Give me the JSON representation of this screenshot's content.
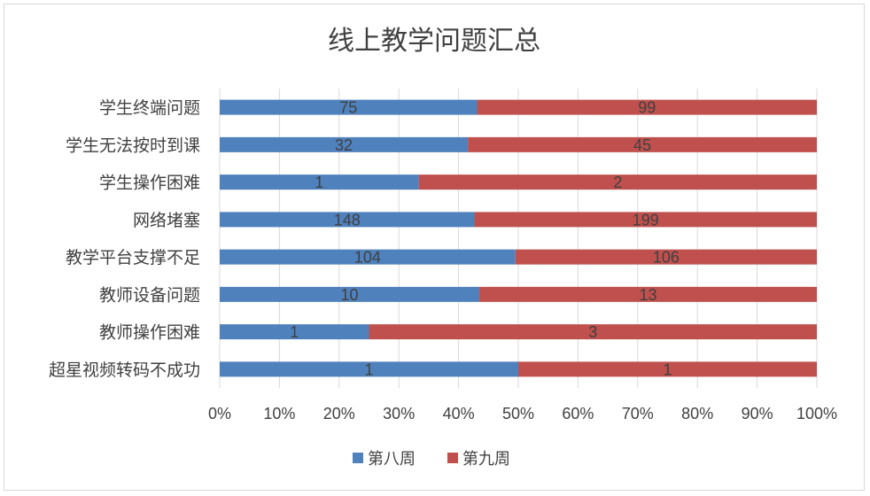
{
  "chart_data": {
    "type": "bar",
    "orientation": "horizontal",
    "stacking": "percent",
    "title": "线上教学问题汇总",
    "categories": [
      "学生终端问题",
      "学生无法按时到课",
      "学生操作困难",
      "网络堵塞",
      "教学平台支撑不足",
      "教师设备问题",
      "教师操作困难",
      "超星视频转码不成功"
    ],
    "series": [
      {
        "name": "第八周",
        "color": "#4f81bd",
        "values": [
          75,
          32,
          1,
          148,
          104,
          10,
          1,
          1
        ]
      },
      {
        "name": "第九周",
        "color": "#c0504d",
        "values": [
          99,
          45,
          2,
          199,
          106,
          13,
          3,
          1
        ]
      }
    ],
    "x_ticks": [
      "0%",
      "10%",
      "20%",
      "30%",
      "40%",
      "50%",
      "60%",
      "70%",
      "80%",
      "90%",
      "100%"
    ],
    "xlim": [
      0,
      100
    ],
    "grid": true,
    "legend_position": "bottom"
  }
}
